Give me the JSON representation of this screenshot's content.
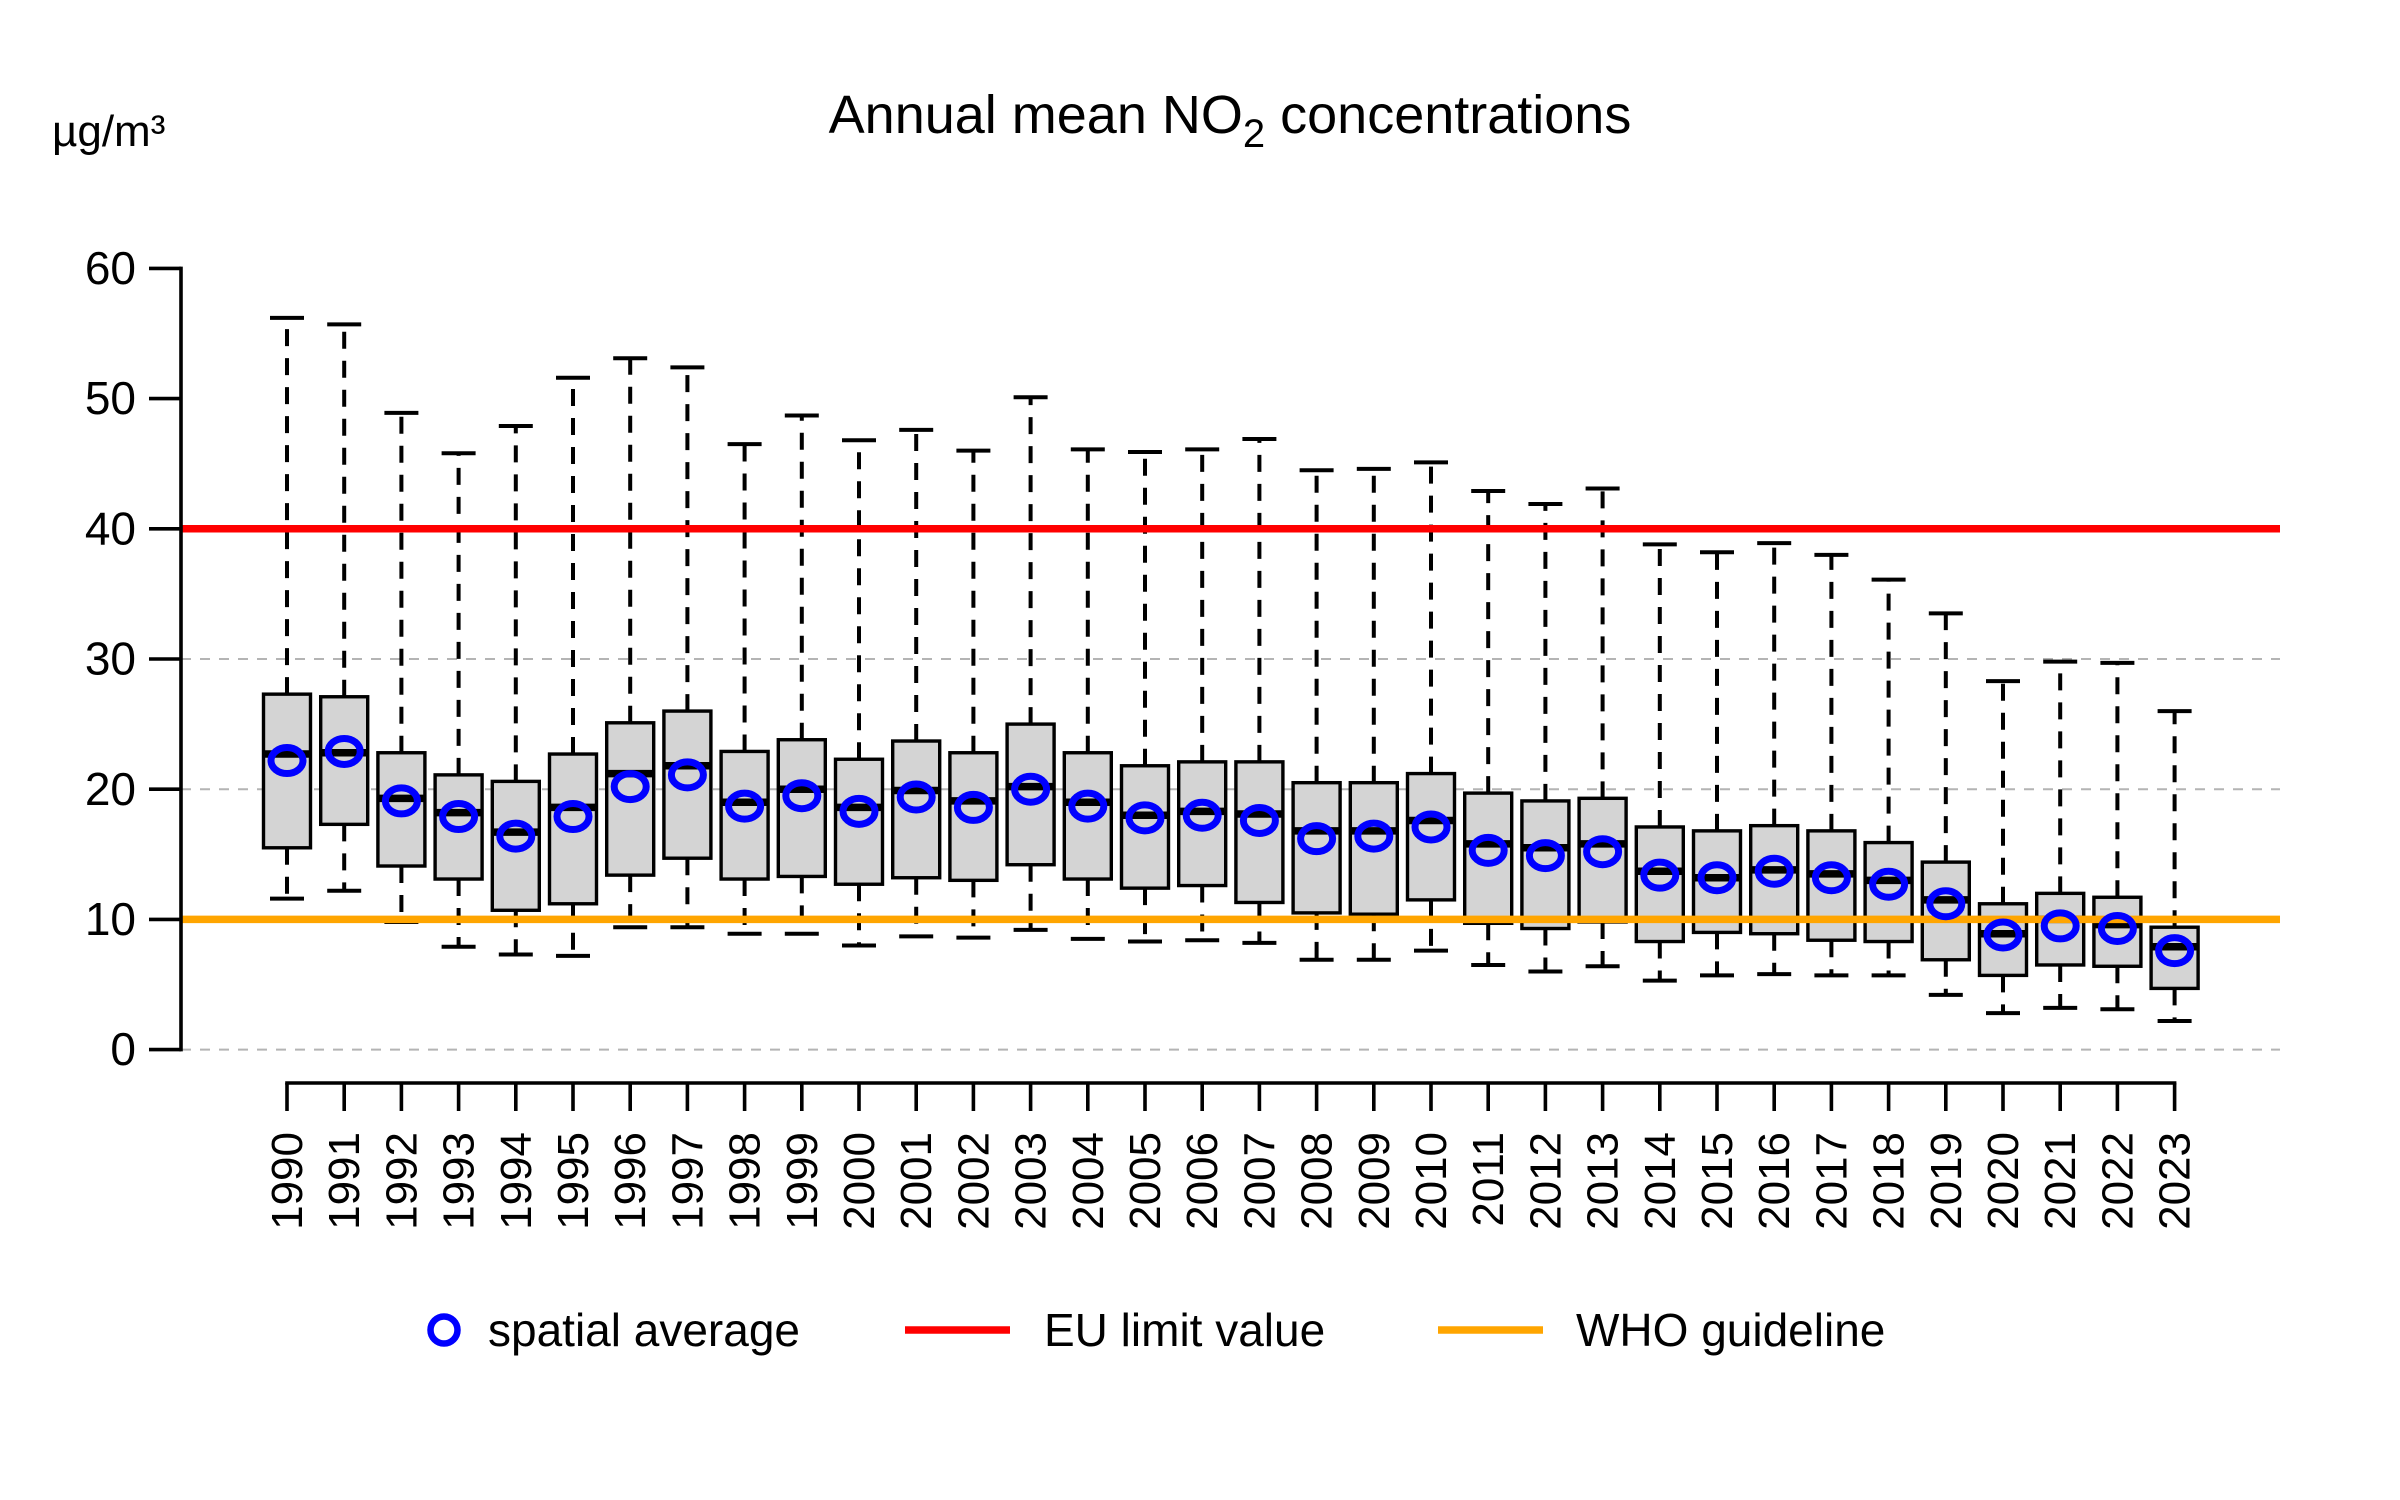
{
  "colors": {
    "background": "#ffffff",
    "text": "#000000",
    "box_fill": "#d4d4d4",
    "box_border": "#000000",
    "median_line": "#000000",
    "whisker": "#000000",
    "mean_marker": "#0000ff",
    "gridline": "#b4b4b4",
    "eu_limit": "#ff0000",
    "who_guideline": "#ffa500"
  },
  "chart_data": {
    "type": "boxplot",
    "title": "Annual mean NO2 concentrations",
    "title_parts": {
      "prefix": "Annual mean NO",
      "subscript": "2",
      "suffix": " concentrations"
    },
    "ylabel": "µg/m³",
    "ylim": [
      0,
      60
    ],
    "y_ticks": [
      0,
      10,
      20,
      30,
      40,
      50,
      60
    ],
    "dashed_gridlines_at": [
      0,
      20,
      30
    ],
    "grid": "partial-dashed-horizontal",
    "legend_position": "bottom",
    "reference_lines": [
      {
        "id": "eu-limit",
        "label": "EU limit value",
        "value": 40,
        "color": "#ff0000"
      },
      {
        "id": "who-guideline",
        "label": "WHO guideline",
        "value": 10,
        "color": "#ffa500"
      }
    ],
    "legend": [
      {
        "id": "spatial-average",
        "label": "spatial average",
        "marker": "open-circle",
        "color": "#0000ff"
      },
      {
        "id": "eu-limit",
        "label": "EU limit value",
        "marker": "line",
        "color": "#ff0000"
      },
      {
        "id": "who-guideline",
        "label": "WHO guideline",
        "marker": "line",
        "color": "#ffa500"
      }
    ],
    "categories": [
      1990,
      1991,
      1992,
      1993,
      1994,
      1995,
      1996,
      1997,
      1998,
      1999,
      2000,
      2001,
      2002,
      2003,
      2004,
      2005,
      2006,
      2007,
      2008,
      2009,
      2010,
      2011,
      2012,
      2013,
      2014,
      2015,
      2016,
      2017,
      2018,
      2019,
      2020,
      2021,
      2022,
      2023
    ],
    "boxes": {
      "whisker_low": [
        11.6,
        12.2,
        9.8,
        7.9,
        7.3,
        7.2,
        9.4,
        9.4,
        8.9,
        8.9,
        8.0,
        8.7,
        8.6,
        9.2,
        8.5,
        8.3,
        8.4,
        8.2,
        6.9,
        6.9,
        7.6,
        6.5,
        6.0,
        6.4,
        5.3,
        5.7,
        5.8,
        5.7,
        5.7,
        4.2,
        2.8,
        3.2,
        3.1,
        2.2
      ],
      "q1": [
        15.5,
        17.3,
        14.1,
        13.1,
        10.7,
        11.2,
        13.4,
        14.7,
        13.1,
        13.3,
        12.7,
        13.2,
        13.0,
        14.2,
        13.1,
        12.4,
        12.6,
        11.3,
        10.5,
        10.4,
        11.5,
        9.7,
        9.3,
        9.8,
        8.3,
        9.0,
        8.9,
        8.4,
        8.3,
        6.9,
        5.7,
        6.5,
        6.4,
        4.7
      ],
      "median": [
        22.7,
        22.8,
        19.3,
        18.2,
        16.7,
        18.6,
        21.2,
        21.8,
        19.0,
        20.0,
        18.6,
        19.9,
        19.1,
        20.2,
        19.0,
        18.0,
        18.3,
        18.1,
        16.8,
        16.8,
        17.6,
        15.8,
        15.5,
        15.8,
        13.7,
        13.2,
        13.8,
        13.5,
        13.0,
        11.5,
        8.9,
        10.0,
        9.6,
        7.9
      ],
      "mean": [
        22.2,
        22.9,
        19.1,
        17.9,
        16.4,
        17.9,
        20.2,
        21.1,
        18.7,
        19.5,
        18.3,
        19.4,
        18.6,
        20.0,
        18.7,
        17.8,
        18.0,
        17.6,
        16.2,
        16.4,
        17.1,
        15.3,
        14.9,
        15.2,
        13.4,
        13.2,
        13.7,
        13.2,
        12.7,
        11.2,
        8.8,
        9.5,
        9.3,
        7.6
      ],
      "q3": [
        27.3,
        27.1,
        22.8,
        21.1,
        20.6,
        22.7,
        25.1,
        26.0,
        22.9,
        23.8,
        22.3,
        23.7,
        22.8,
        25.0,
        22.8,
        21.8,
        22.1,
        22.1,
        20.5,
        20.5,
        21.2,
        19.7,
        19.1,
        19.3,
        17.1,
        16.8,
        17.2,
        16.8,
        15.9,
        14.4,
        11.2,
        12.0,
        11.7,
        9.4
      ],
      "whisker_high": [
        56.2,
        55.7,
        48.9,
        45.8,
        47.9,
        51.6,
        53.1,
        52.4,
        46.5,
        48.7,
        46.8,
        47.6,
        46.0,
        50.1,
        46.1,
        45.9,
        46.1,
        46.9,
        44.5,
        44.6,
        45.1,
        42.9,
        41.9,
        43.1,
        38.8,
        38.2,
        38.9,
        38.0,
        36.1,
        33.5,
        28.3,
        29.8,
        29.7,
        26.0
      ]
    }
  }
}
